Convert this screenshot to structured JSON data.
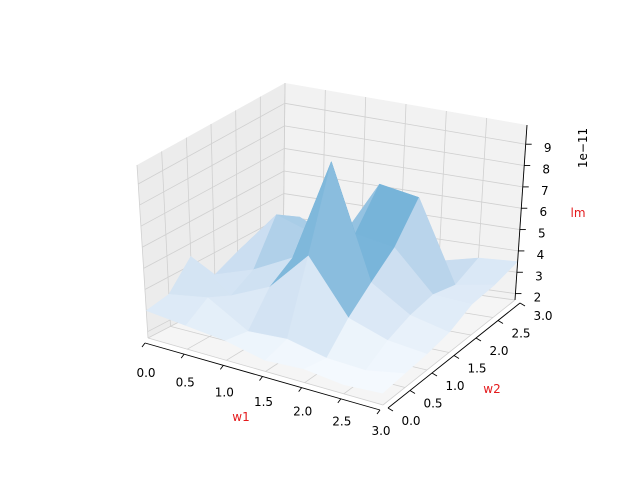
{
  "chart_data": {
    "type": "surface",
    "colormap": "Blues",
    "xlabel": "w1",
    "ylabel": "w2",
    "zlabel": "lm",
    "label_color": "#e41a1c",
    "z_offset_text": "1e−11",
    "xlim": [
      0,
      3
    ],
    "ylim": [
      0,
      3
    ],
    "zlim": [
      1.7e-11,
      9.9e-11
    ],
    "x_tick_labels": [
      "0.0",
      "0.5",
      "1.0",
      "1.5",
      "2.0",
      "2.5",
      "3.0"
    ],
    "y_tick_labels": [
      "0.0",
      "0.5",
      "1.0",
      "1.5",
      "2.0",
      "2.5",
      "3.0"
    ],
    "z_tick_labels": [
      "2",
      "3",
      "4",
      "5",
      "6",
      "7",
      "8",
      "9"
    ],
    "x": [
      0,
      0.5,
      1.0,
      1.5,
      2.0,
      2.5,
      3.0
    ],
    "y": [
      0,
      0.5,
      1.0,
      1.5,
      2.0,
      2.5,
      3.0
    ],
    "z": [
      [
        3e-11,
        3.2e-11,
        4.4e-11,
        3e-11,
        3.5e-11,
        3.2e-11,
        3e-11
      ],
      [
        2.8e-11,
        3.5e-11,
        3e-11,
        3.6e-11,
        5.5e-11,
        4.8e-11,
        3.2e-11
      ],
      [
        2.6e-11,
        2.4e-11,
        3.8e-11,
        4.5e-11,
        4.9e-11,
        4e-11,
        3.3e-11
      ],
      [
        2.2e-11,
        2.5e-11,
        5.6e-11,
        9.2e-11,
        5.3e-11,
        6.9e-11,
        3.4e-11
      ],
      [
        2.3e-11,
        2.1e-11,
        3.2e-11,
        4.1e-11,
        5e-11,
        6.6e-11,
        3e-11
      ],
      [
        2.1e-11,
        2e-11,
        2.6e-11,
        3e-11,
        3.2e-11,
        2.9e-11,
        3.4e-11
      ],
      [
        2.2e-11,
        2.3e-11,
        2.4e-11,
        2.6e-11,
        3.1e-11,
        3.2e-11,
        3.5e-11
      ]
    ],
    "grid": true
  }
}
